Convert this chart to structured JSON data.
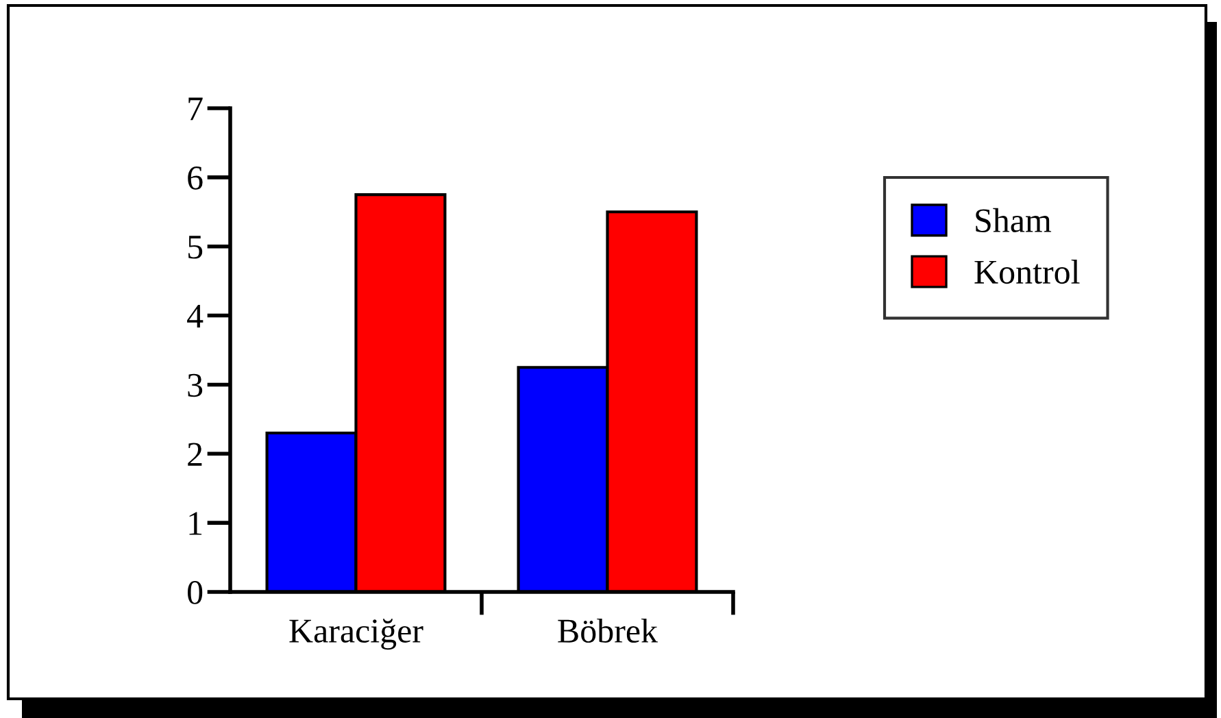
{
  "chart_data": {
    "type": "bar",
    "categories": [
      "Karaciğer",
      "Böbrek"
    ],
    "series": [
      {
        "name": "Sham",
        "color": "#0000ff",
        "values": [
          2.3,
          3.25
        ]
      },
      {
        "name": "Kontrol",
        "color": "#ff0000",
        "values": [
          5.75,
          5.5
        ]
      }
    ],
    "ylim": [
      0,
      7
    ],
    "yticks": [
      0,
      1,
      2,
      3,
      4,
      5,
      6,
      7
    ],
    "legend": "right"
  }
}
